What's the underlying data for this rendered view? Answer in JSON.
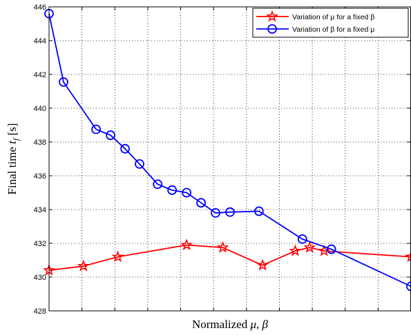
{
  "chart_data": {
    "type": "line",
    "title": "",
    "xlabel": "Normalized μ, β",
    "ylabel": "Final time t_f [s]",
    "ylabel_parts": {
      "main": "Final time ",
      "var": "t",
      "sub": "f",
      "unit": " [s]"
    },
    "xlabel_parts": {
      "main": "Normalized ",
      "var1": "μ",
      "sep": ", ",
      "var2": "β"
    },
    "x_tick_labels": "none",
    "xlim": [
      0,
      1
    ],
    "ylim": [
      428,
      446
    ],
    "y_ticks": [
      "428",
      "430",
      "432",
      "434",
      "436",
      "438",
      "440",
      "442",
      "444",
      "446"
    ],
    "x_grid_count": 11,
    "grid": true,
    "legend_position": "top-right",
    "series": [
      {
        "name": "Variation of μ for a fixed β",
        "color": "#ff0000",
        "marker": "star",
        "x": [
          0.0,
          0.095,
          0.19,
          0.38,
          0.48,
          0.59,
          0.68,
          0.72,
          0.76,
          1.0
        ],
        "y": [
          430.4,
          430.65,
          431.2,
          431.9,
          431.75,
          430.7,
          431.55,
          431.75,
          431.55,
          431.2
        ]
      },
      {
        "name": "Variation of β for a fixed μ",
        "color": "#0000ff",
        "marker": "circle",
        "x": [
          0.0,
          0.04,
          0.13,
          0.17,
          0.21,
          0.25,
          0.3,
          0.34,
          0.38,
          0.42,
          0.46,
          0.5,
          0.58,
          0.7,
          0.78,
          1.0
        ],
        "y": [
          445.6,
          441.55,
          438.75,
          438.4,
          437.6,
          436.7,
          435.5,
          435.15,
          435.0,
          434.4,
          433.8,
          433.85,
          433.9,
          432.25,
          431.65,
          429.45
        ]
      }
    ]
  }
}
